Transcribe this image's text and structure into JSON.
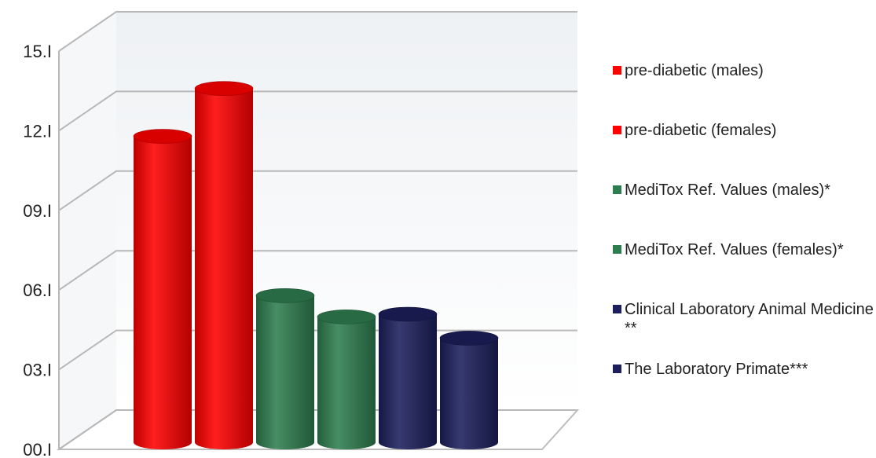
{
  "chart_data": {
    "type": "bar",
    "ylim": [
      0,
      15
    ],
    "yticks": [
      0,
      3,
      6,
      9,
      12,
      15
    ],
    "tick_labels": [
      "00.I",
      "03.I",
      "06.I",
      "09.I",
      "12.I",
      "15.I"
    ],
    "grid": true,
    "legend_position": "right",
    "series": [
      {
        "name": "pre-diabetic (males)",
        "color": "#ff0000",
        "values": [
          11.7
        ]
      },
      {
        "name": "pre-diabetic (females)",
        "color": "#ff0000",
        "values": [
          13.5
        ]
      },
      {
        "name": "MediTox Ref. Values (males)*",
        "color": "#2e7d4f",
        "values": [
          5.7
        ]
      },
      {
        "name": "MediTox Ref. Values (females)*",
        "color": "#2e7d4f",
        "values": [
          4.9
        ]
      },
      {
        "name": "Clinical Laboratory Animal Medicine **",
        "color": "#1c1f5c",
        "values": [
          5.0
        ]
      },
      {
        "name": "The Laboratory Primate***",
        "color": "#1c1f5c",
        "values": [
          4.1
        ]
      }
    ]
  }
}
